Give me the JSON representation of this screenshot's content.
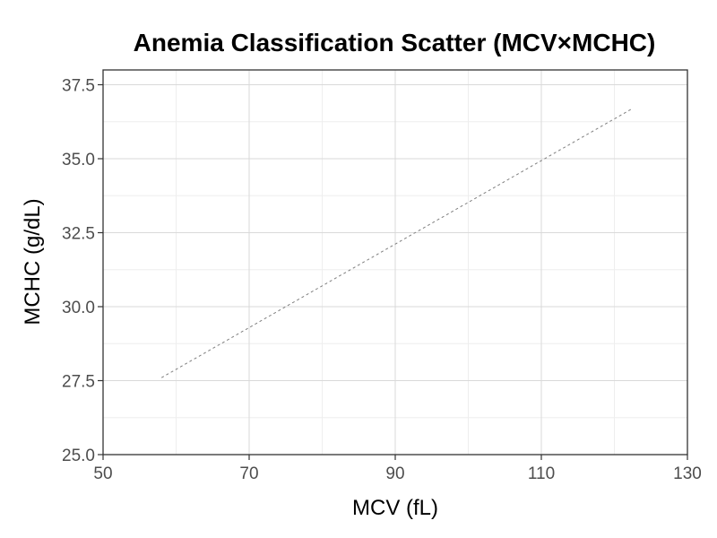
{
  "chart_data": {
    "type": "scatter",
    "title": "Anemia Classification Scatter (MCV×MCHC)",
    "xlabel": "MCV (fL)",
    "ylabel": "MCHC (g/dL)",
    "xlim": [
      50,
      130
    ],
    "ylim": [
      25,
      38
    ],
    "x_ticks": [
      50,
      70,
      90,
      110,
      130
    ],
    "x_tick_labels": [
      "50",
      "70",
      "90",
      "110",
      "130"
    ],
    "y_ticks": [
      25,
      27.5,
      30,
      32.5,
      35,
      37.5
    ],
    "y_tick_labels": [
      "25.0",
      "27.5",
      "30.0",
      "32.5",
      "35.0",
      "37.5"
    ],
    "grid": true,
    "points": [],
    "trend_line": {
      "x": [
        58,
        122.5
      ],
      "y": [
        27.6,
        36.7
      ],
      "style": "dashed",
      "color": "#7f7f7f"
    }
  }
}
